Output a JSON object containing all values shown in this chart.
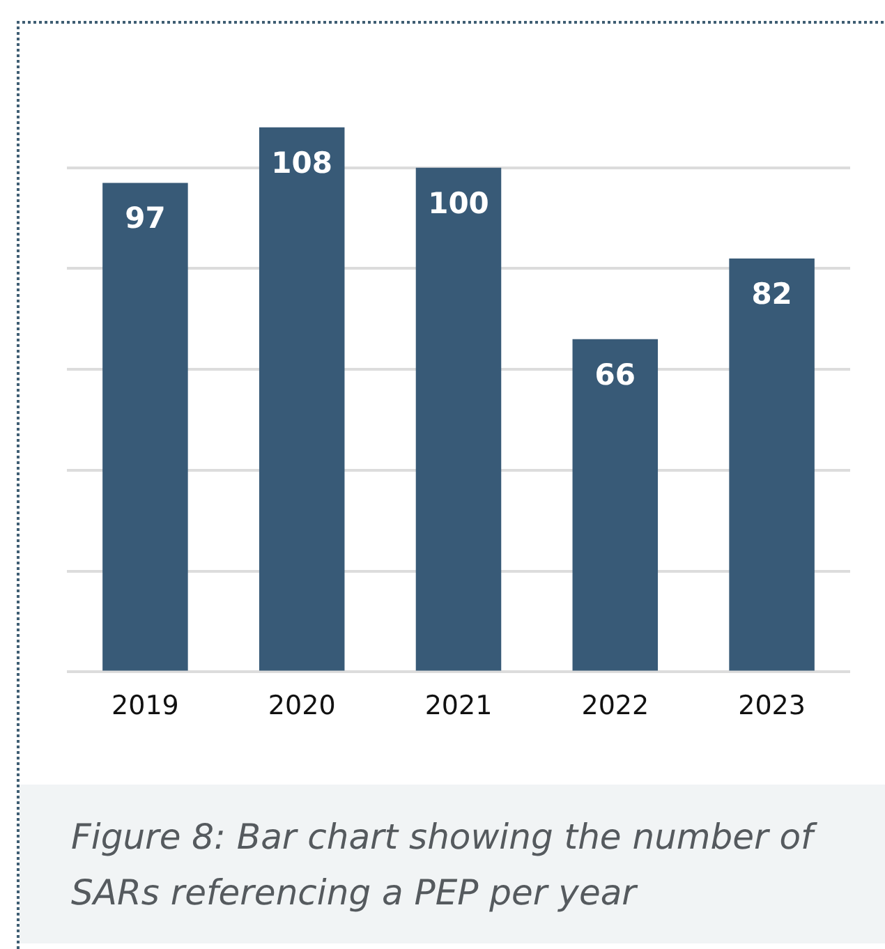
{
  "chart_data": {
    "type": "bar",
    "categories": [
      "2019",
      "2020",
      "2021",
      "2022",
      "2023"
    ],
    "values": [
      97,
      108,
      100,
      66,
      82
    ],
    "color": "#385a77",
    "yticks": [
      {
        "value": 0,
        "label": null
      },
      {
        "value": 20,
        "label": null
      },
      {
        "value": 40,
        "label": null
      },
      {
        "value": 60,
        "label": null
      },
      {
        "value": 80,
        "label": null
      },
      {
        "value": 100,
        "label": null
      }
    ],
    "tick_labels": "x",
    "grid": "y",
    "legend": false,
    "data_labels": true,
    "annotations": [
      "Figure 8: Bar chart showing the number of SARs referencing a PEP per year"
    ]
  }
}
